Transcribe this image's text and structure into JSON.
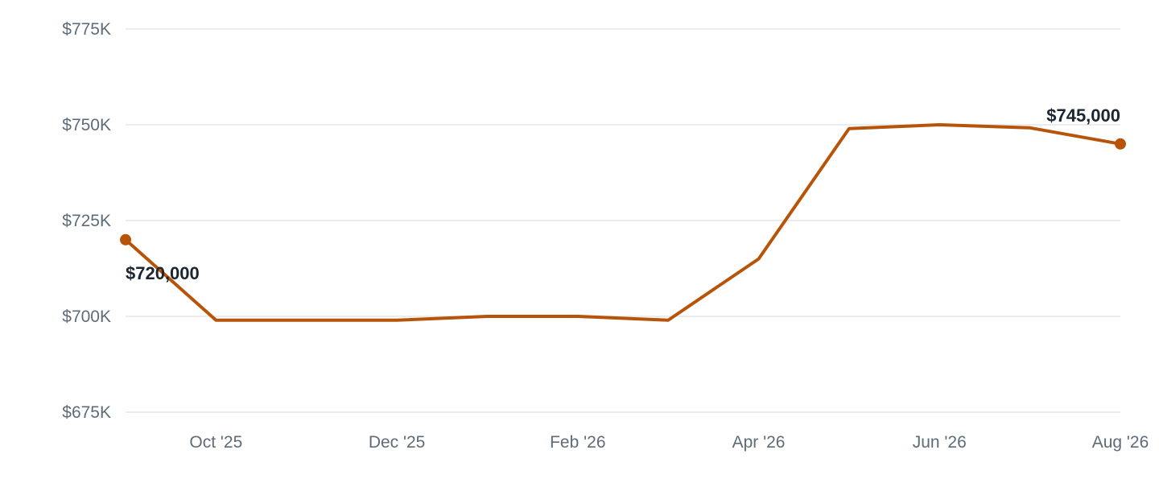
{
  "chart_data": {
    "type": "line",
    "title": "",
    "xlabel": "",
    "ylabel": "",
    "x": [
      "2025-09",
      "2025-10",
      "2025-11",
      "2025-12",
      "2026-01",
      "2026-02",
      "2026-03",
      "2026-04",
      "2026-05",
      "2026-06",
      "2026-07",
      "2026-08"
    ],
    "series": [
      {
        "values": [
          720000,
          699000,
          699000,
          699000,
          700000,
          700000,
          699000,
          715000,
          749000,
          750000,
          749200,
          745000
        ],
        "color": "#b8540a"
      }
    ],
    "x_ticks": [
      {
        "x": "2025-10",
        "label": "Oct '25"
      },
      {
        "x": "2025-12",
        "label": "Dec '25"
      },
      {
        "x": "2026-02",
        "label": "Feb '26"
      },
      {
        "x": "2026-04",
        "label": "Apr '26"
      },
      {
        "x": "2026-06",
        "label": "Jun '26"
      },
      {
        "x": "2026-08",
        "label": "Aug '26"
      }
    ],
    "y_ticks": [
      {
        "value": 675000,
        "label": "$675K"
      },
      {
        "value": 700000,
        "label": "$700K"
      },
      {
        "value": 725000,
        "label": "$725K"
      },
      {
        "value": 750000,
        "label": "$750K"
      },
      {
        "value": 775000,
        "label": "$775K"
      }
    ],
    "ylim": [
      675000,
      775000
    ],
    "grid": true,
    "annotations": [
      {
        "x": "2025-09",
        "value": 720000,
        "text": "$720,000",
        "placement": "below-right"
      },
      {
        "x": "2026-08",
        "value": 745000,
        "text": "$745,000",
        "placement": "above-left"
      }
    ]
  }
}
